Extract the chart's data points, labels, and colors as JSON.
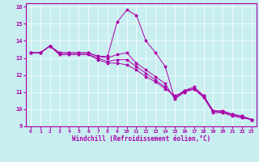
{
  "xlabel": "Windchill (Refroidissement éolien,°C)",
  "bg_color": "#c8eef0",
  "line_color": "#aa00aa",
  "marker": "*",
  "xlim": [
    -0.5,
    23.5
  ],
  "ylim": [
    9,
    16.2
  ],
  "yticks": [
    9,
    10,
    11,
    12,
    13,
    14,
    15,
    16
  ],
  "xticks": [
    0,
    1,
    2,
    3,
    4,
    5,
    6,
    7,
    8,
    9,
    10,
    11,
    12,
    13,
    14,
    15,
    16,
    17,
    18,
    19,
    20,
    21,
    22,
    23
  ],
  "series": [
    [
      13.3,
      13.3,
      13.7,
      13.3,
      13.3,
      13.3,
      13.3,
      13.1,
      13.1,
      15.1,
      15.8,
      15.5,
      14.0,
      13.3,
      12.5,
      10.6,
      11.0,
      11.2,
      10.8,
      9.9,
      9.9,
      9.7,
      9.6,
      9.4
    ],
    [
      13.3,
      13.3,
      13.7,
      13.3,
      13.3,
      13.3,
      13.3,
      13.1,
      13.0,
      13.2,
      13.3,
      12.7,
      12.3,
      11.9,
      11.5,
      10.6,
      11.1,
      11.3,
      10.8,
      9.9,
      9.9,
      9.7,
      9.6,
      9.4
    ],
    [
      13.3,
      13.3,
      13.7,
      13.2,
      13.2,
      13.2,
      13.2,
      13.0,
      12.8,
      12.9,
      12.9,
      12.5,
      12.1,
      11.7,
      11.3,
      10.7,
      11.1,
      11.2,
      10.7,
      9.9,
      9.8,
      9.7,
      9.5,
      9.4
    ],
    [
      13.3,
      13.3,
      13.7,
      13.2,
      13.2,
      13.2,
      13.2,
      12.9,
      12.7,
      12.7,
      12.6,
      12.3,
      11.9,
      11.6,
      11.2,
      10.8,
      11.0,
      11.2,
      10.7,
      9.8,
      9.8,
      9.6,
      9.5,
      9.4
    ]
  ]
}
